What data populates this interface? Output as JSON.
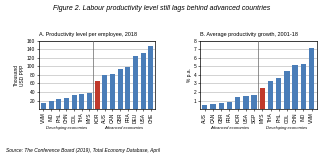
{
  "title": "Figure 2. Labour productivity level still lags behind advanced countries",
  "source": "Source: The Conference Board (2019), Total Economy Database, April",
  "chart_data": [
    {
      "type": "bar",
      "title": "A. Productivity level per employee, 2018",
      "y_label": "Thousand\nUSD PPP",
      "categories": [
        "VNM",
        "IND",
        "PHL",
        "CHN",
        "COL",
        "THA",
        "MYS",
        "KOR",
        "AUS",
        "CAN",
        "GBR",
        "FRA",
        "DEU",
        "USA",
        "CHE"
      ],
      "values": [
        15,
        20,
        23,
        27,
        32,
        35,
        38,
        65,
        80,
        82,
        93,
        98,
        125,
        130,
        148
      ],
      "colors": [
        "#4A7DB8",
        "#4A7DB8",
        "#4A7DB8",
        "#4A7DB8",
        "#4A7DB8",
        "#4A7DB8",
        "#4A7DB8",
        "#C0392B",
        "#4A7DB8",
        "#4A7DB8",
        "#4A7DB8",
        "#4A7DB8",
        "#4A7DB8",
        "#4A7DB8",
        "#4A7DB8"
      ],
      "groups": [
        {
          "name": "Developing economies",
          "count": 7
        },
        {
          "name": "Advanced economies",
          "count": 8
        }
      ],
      "ylim": [
        0,
        160
      ],
      "yticks": [
        20,
        40,
        60,
        80,
        100,
        120,
        140,
        160
      ],
      "grid": true
    },
    {
      "type": "bar",
      "title": "B. Average productivity growth, 2001-18",
      "y_label": "% p.a.",
      "categories": [
        "AUS",
        "CAN",
        "GBR",
        "FRA",
        "KOR",
        "USA",
        "SGP",
        "MYS",
        "THA",
        "PHL",
        "COL",
        "CHN",
        "IND",
        "VNM"
      ],
      "values": [
        0.5,
        0.6,
        0.75,
        0.85,
        1.4,
        1.55,
        1.65,
        2.5,
        3.3,
        3.6,
        4.4,
        5.2,
        5.3,
        7.1
      ],
      "colors": [
        "#4A7DB8",
        "#4A7DB8",
        "#4A7DB8",
        "#4A7DB8",
        "#4A7DB8",
        "#4A7DB8",
        "#4A7DB8",
        "#C0392B",
        "#4A7DB8",
        "#4A7DB8",
        "#4A7DB8",
        "#4A7DB8",
        "#4A7DB8",
        "#4A7DB8"
      ],
      "groups": [
        {
          "name": "Advanced economies",
          "count": 7
        },
        {
          "name": "Developing economies",
          "count": 7
        }
      ],
      "ylim": [
        0,
        8
      ],
      "yticks": [
        1,
        2,
        3,
        4,
        5,
        6,
        7,
        8
      ],
      "grid": true
    }
  ]
}
